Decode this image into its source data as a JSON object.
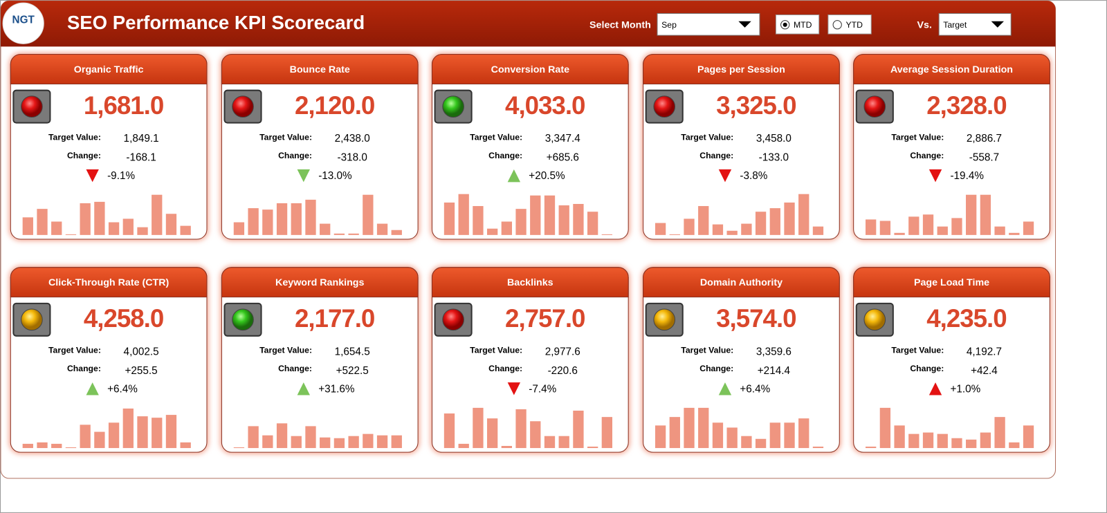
{
  "header": {
    "logo": "NGT",
    "title": "SEO Performance KPI Scorecard",
    "select_month_label": "Select Month",
    "month": "Sep",
    "mtd": "MTD",
    "ytd": "YTD",
    "vs_label": "Vs.",
    "comparison": "Target"
  },
  "cards": [
    {
      "title": "Organic Traffic",
      "value": "1,681.0",
      "target_label": "Target Value:",
      "target": "1,849.1",
      "change_label": "Change:",
      "change": "-168.1",
      "change_pct": "-9.1%",
      "status": "red",
      "trend": "down",
      "trend_color": "red",
      "bars": [
        25,
        37,
        19,
        1,
        45,
        47,
        18,
        23,
        11,
        57,
        30,
        13
      ]
    },
    {
      "title": "Bounce Rate",
      "value": "2,120.0",
      "target_label": "Target Value:",
      "target": "2,438.0",
      "change_label": "Change:",
      "change": "-318.0",
      "change_pct": "-13.0%",
      "status": "red",
      "trend": "down",
      "trend_color": "green",
      "bars": [
        18,
        38,
        36,
        45,
        45,
        50,
        16,
        2,
        2,
        57,
        16,
        7
      ]
    },
    {
      "title": "Conversion Rate",
      "value": "4,033.0",
      "target_label": "Target Value:",
      "target": "3,347.4",
      "change_label": "Change:",
      "change": "+685.6",
      "change_pct": "+20.5%",
      "status": "green",
      "trend": "up",
      "trend_color": "green",
      "bars": [
        46,
        58,
        41,
        9,
        19,
        37,
        56,
        56,
        42,
        44,
        33,
        1
      ]
    },
    {
      "title": "Pages per Session",
      "value": "3,325.0",
      "target_label": "Target Value:",
      "target": "3,458.0",
      "change_label": "Change:",
      "change": "-133.0",
      "change_pct": "-3.8%",
      "status": "red",
      "trend": "down",
      "trend_color": "red",
      "bars": [
        17,
        1,
        23,
        41,
        15,
        6,
        16,
        33,
        38,
        46,
        58,
        12
      ]
    },
    {
      "title": "Average Session Duration",
      "value": "2,328.0",
      "target_label": "Target Value:",
      "target": "2,886.7",
      "change_label": "Change:",
      "change": "-558.7",
      "change_pct": "-19.4%",
      "status": "red",
      "trend": "down",
      "trend_color": "red",
      "bars": [
        22,
        20,
        3,
        26,
        29,
        12,
        24,
        57,
        57,
        12,
        3,
        19
      ]
    },
    {
      "title": "Click-Through Rate (CTR)",
      "value": "4,258.0",
      "target_label": "Target Value:",
      "target": "4,002.5",
      "change_label": "Change:",
      "change": "+255.5",
      "change_pct": "+6.4%",
      "status": "yellow",
      "trend": "up",
      "trend_color": "green",
      "bars": [
        6,
        8,
        6,
        1,
        33,
        23,
        36,
        56,
        45,
        43,
        47,
        8
      ]
    },
    {
      "title": "Keyword Rankings",
      "value": "2,177.0",
      "target_label": "Target Value:",
      "target": "1,654.5",
      "change_label": "Change:",
      "change": "+522.5",
      "change_pct": "+31.6%",
      "status": "green",
      "trend": "up",
      "trend_color": "green",
      "bars": [
        1,
        31,
        18,
        35,
        17,
        31,
        15,
        14,
        17,
        20,
        18,
        18
      ]
    },
    {
      "title": "Backlinks",
      "value": "2,757.0",
      "target_label": "Target Value:",
      "target": "2,977.6",
      "change_label": "Change:",
      "change": "-220.6",
      "change_pct": "-7.4%",
      "status": "red",
      "trend": "down",
      "trend_color": "red",
      "bars": [
        49,
        6,
        57,
        42,
        3,
        55,
        38,
        17,
        17,
        53,
        2,
        44
      ]
    },
    {
      "title": "Domain Authority",
      "value": "3,574.0",
      "target_label": "Target Value:",
      "target": "3,359.6",
      "change_label": "Change:",
      "change": "+214.4",
      "change_pct": "+6.4%",
      "status": "yellow",
      "trend": "up",
      "trend_color": "green",
      "bars": [
        32,
        44,
        57,
        57,
        36,
        29,
        17,
        13,
        36,
        36,
        42,
        2
      ]
    },
    {
      "title": "Page Load Time",
      "value": "4,235.0",
      "target_label": "Target Value:",
      "target": "4,192.7",
      "change_label": "Change:",
      "change": "+42.4",
      "change_pct": "+1.0%",
      "status": "yellow",
      "trend": "up",
      "trend_color": "red",
      "bars": [
        2,
        57,
        32,
        20,
        22,
        20,
        14,
        12,
        22,
        44,
        8,
        32
      ]
    }
  ]
}
